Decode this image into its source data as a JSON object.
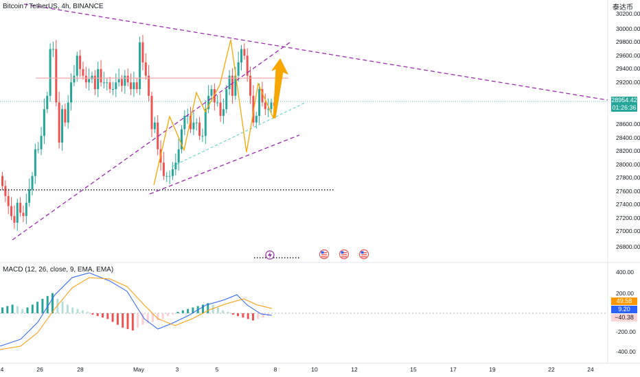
{
  "header": {
    "symbol_title": "Bitcoin / TetherUS, 4h, BINANCE",
    "watermark": "泰达币"
  },
  "price_axis": {
    "ticks": [
      "30200.00",
      "30000.00",
      "29800.00",
      "29600.00",
      "29400.00",
      "29200.00",
      "28600.00",
      "28400.00",
      "28200.00",
      "28000.00",
      "27800.00",
      "27600.00",
      "27400.00",
      "27200.00",
      "27000.00",
      "26800.00"
    ],
    "last_price": "28954.42",
    "countdown": "01:26:36"
  },
  "macd": {
    "label": "MACD (12, 26, close, 9, EMA, EMA)",
    "axis_ticks": [
      "400.00",
      "200.00",
      "-200.00",
      "-400.00"
    ],
    "value_signal": "49.58",
    "value_macd": "9.20",
    "value_hist": "−40.38"
  },
  "time_axis": {
    "ticks": [
      "4",
      "26",
      "28",
      "May",
      "3",
      "5",
      "8",
      "10",
      "12",
      "15",
      "17",
      "19",
      "22",
      "24"
    ]
  },
  "colors": {
    "up": "#26a69a",
    "down": "#ef5350",
    "trendline": "#9c27b0",
    "pattern": "#f7a600",
    "resistance": "#f4a3a3",
    "support": "#131722",
    "macd_line": "#2962ff",
    "signal_line": "#ff9800"
  },
  "icons": [
    "lightning-event-icon",
    "us-flag-event-icon",
    "us-flag-event-icon",
    "us-flag-event-icon"
  ]
}
